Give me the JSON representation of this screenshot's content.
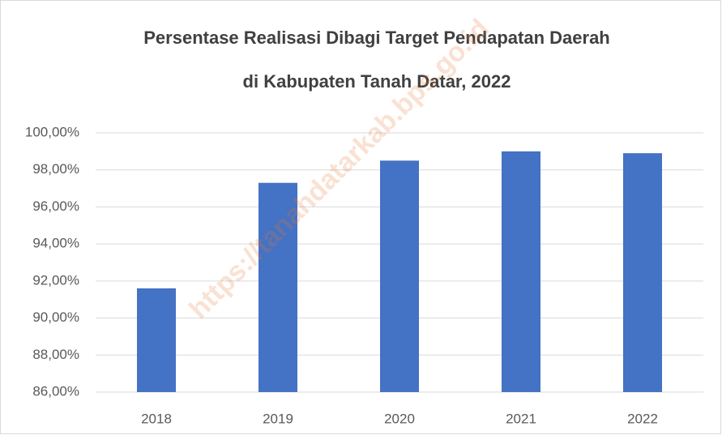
{
  "chart_data": {
    "type": "bar",
    "title": [
      "Persentase Realisasi Dibagi Target Pendapatan Daerah",
      "di Kabupaten Tanah Datar, 2022"
    ],
    "categories": [
      "2018",
      "2019",
      "2020",
      "2021",
      "2022"
    ],
    "values": [
      91.6,
      97.3,
      98.5,
      99.0,
      98.9
    ],
    "color": "#4472c4",
    "ylim": [
      86,
      100
    ],
    "yticks": [
      {
        "value": 86,
        "label": "86,00%"
      },
      {
        "value": 88,
        "label": "88,00%"
      },
      {
        "value": 90,
        "label": "90,00%"
      },
      {
        "value": 92,
        "label": "92,00%"
      },
      {
        "value": 94,
        "label": "94,00%"
      },
      {
        "value": 96,
        "label": "96,00%"
      },
      {
        "value": 98,
        "label": "98,00%"
      },
      {
        "value": 100,
        "label": "100,00%"
      }
    ],
    "grid": true,
    "watermark": "https://tanahdatarkab.bps.go.id"
  }
}
